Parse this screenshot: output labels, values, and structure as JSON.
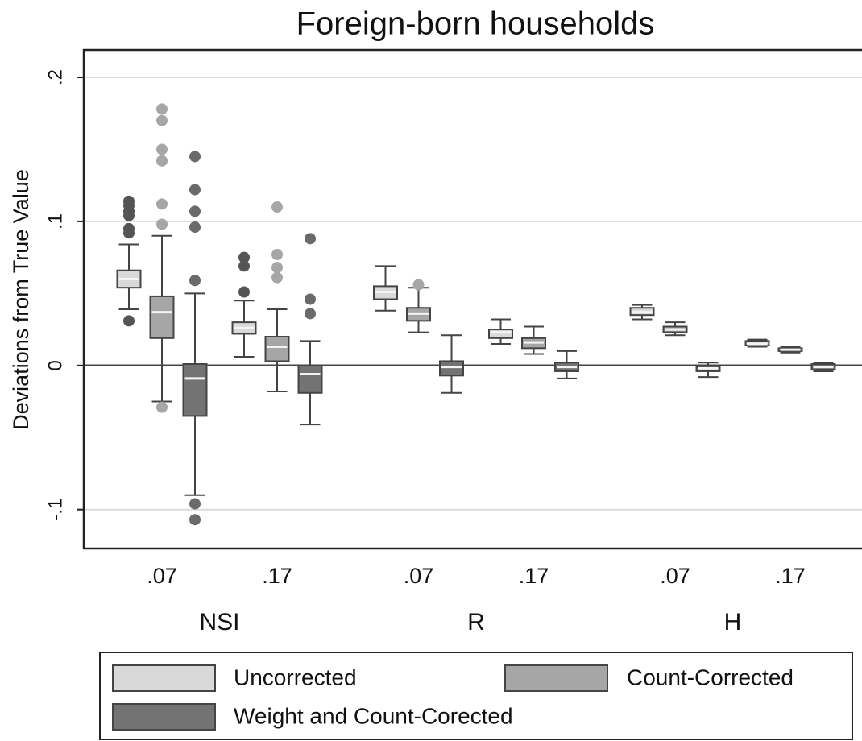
{
  "chart_data": {
    "type": "box",
    "title": "Foreign-born households",
    "y_label": "Deviations from True Value",
    "groups": [
      "NSI",
      "R",
      "H"
    ],
    "subgroups": [
      ".07",
      ".17"
    ],
    "ylim": [
      -0.127,
      0.219
    ],
    "yticks": [
      {
        "value": -0.1,
        "label": "-.1"
      },
      0,
      {
        "value": 0.1,
        "label": ".1"
      },
      {
        "value": 0.2,
        "label": ".2"
      }
    ],
    "grid": true,
    "reference_line": 0,
    "legend_position": "bottom",
    "series": [
      {
        "name": "Uncorrected",
        "color": "#d9d9d9",
        "outlier_color": "#555555",
        "boxes": [
          {
            "whisker_low": 0.039,
            "q1": 0.054,
            "median": 0.06,
            "q3": 0.066,
            "whisker_high": 0.084,
            "outliers": [
              0.031,
              0.092,
              0.095,
              0.104,
              0.107,
              0.111,
              0.114
            ]
          },
          {
            "whisker_low": 0.006,
            "q1": 0.022,
            "median": 0.026,
            "q3": 0.03,
            "whisker_high": 0.045,
            "outliers": [
              0.051,
              0.069,
              0.075
            ]
          },
          {
            "whisker_low": 0.038,
            "q1": 0.046,
            "median": 0.051,
            "q3": 0.055,
            "whisker_high": 0.069,
            "outliers": []
          },
          {
            "whisker_low": 0.015,
            "q1": 0.019,
            "median": 0.023,
            "q3": 0.025,
            "whisker_high": 0.032,
            "outliers": []
          },
          {
            "whisker_low": 0.032,
            "q1": 0.035,
            "median": 0.037,
            "q3": 0.04,
            "whisker_high": 0.042,
            "outliers": []
          },
          {
            "whisker_low": 0.013,
            "q1": 0.014,
            "median": 0.015,
            "q3": 0.017,
            "whisker_high": 0.018,
            "outliers": []
          }
        ]
      },
      {
        "name": "Count-Corrected",
        "color": "#a6a6a6",
        "outlier_color": "#a6a6a6",
        "boxes": [
          {
            "whisker_low": -0.025,
            "q1": 0.019,
            "median": 0.037,
            "q3": 0.048,
            "whisker_high": 0.09,
            "outliers": [
              -0.029,
              0.098,
              0.112,
              0.142,
              0.15,
              0.17,
              0.178
            ]
          },
          {
            "whisker_low": -0.018,
            "q1": 0.003,
            "median": 0.013,
            "q3": 0.02,
            "whisker_high": 0.039,
            "outliers": [
              0.061,
              0.068,
              0.077,
              0.11
            ]
          },
          {
            "whisker_low": 0.023,
            "q1": 0.031,
            "median": 0.036,
            "q3": 0.04,
            "whisker_high": 0.054,
            "outliers": [
              0.056
            ]
          },
          {
            "whisker_low": 0.008,
            "q1": 0.012,
            "median": 0.016,
            "q3": 0.019,
            "whisker_high": 0.027,
            "outliers": []
          },
          {
            "whisker_low": 0.021,
            "q1": 0.023,
            "median": 0.025,
            "q3": 0.027,
            "whisker_high": 0.03,
            "outliers": []
          },
          {
            "whisker_low": 0.009,
            "q1": 0.01,
            "median": 0.011,
            "q3": 0.012,
            "whisker_high": 0.013,
            "outliers": []
          }
        ]
      },
      {
        "name": "Weight and Count-Corected",
        "color": "#737373",
        "outlier_color": "#6a6a6a",
        "boxes": [
          {
            "whisker_low": -0.09,
            "q1": -0.035,
            "median": -0.009,
            "q3": 0.001,
            "whisker_high": 0.05,
            "outliers": [
              -0.096,
              -0.107,
              0.059,
              0.096,
              0.107,
              0.122,
              0.145
            ]
          },
          {
            "whisker_low": -0.041,
            "q1": -0.019,
            "median": -0.006,
            "q3": 0.0,
            "whisker_high": 0.017,
            "outliers": [
              0.036,
              0.046,
              0.088
            ]
          },
          {
            "whisker_low": -0.019,
            "q1": -0.007,
            "median": -0.001,
            "q3": 0.003,
            "whisker_high": 0.021,
            "outliers": []
          },
          {
            "whisker_low": -0.009,
            "q1": -0.004,
            "median": -0.001,
            "q3": 0.002,
            "whisker_high": 0.01,
            "outliers": []
          },
          {
            "whisker_low": -0.008,
            "q1": -0.004,
            "median": -0.002,
            "q3": -0.001,
            "whisker_high": 0.002,
            "outliers": []
          },
          {
            "whisker_low": -0.004,
            "q1": -0.003,
            "median": -0.001,
            "q3": 0.001,
            "whisker_high": 0.002,
            "outliers": []
          }
        ]
      }
    ]
  }
}
